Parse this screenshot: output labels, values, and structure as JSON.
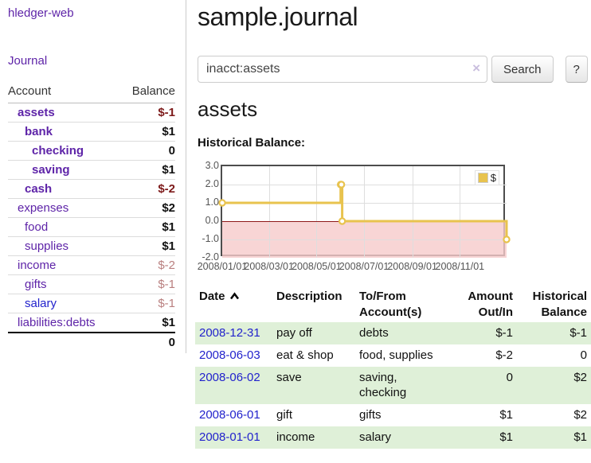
{
  "app": {
    "title": "hledger-web",
    "nav_journal": "Journal"
  },
  "sidebar": {
    "header": {
      "account": "Account",
      "balance": "Balance"
    },
    "accounts": [
      {
        "name": "assets",
        "balance": "$-1",
        "depth": 1,
        "style": "in-bold",
        "bal_style": "neg-strong"
      },
      {
        "name": "bank",
        "balance": "$1",
        "depth": 2,
        "style": "in-bold",
        "bal_style": "pos"
      },
      {
        "name": "checking",
        "balance": "0",
        "depth": 3,
        "style": "in-bold",
        "bal_style": "pos"
      },
      {
        "name": "saving",
        "balance": "$1",
        "depth": 3,
        "style": "in-bold",
        "bal_style": "pos"
      },
      {
        "name": "cash",
        "balance": "$-2",
        "depth": 2,
        "style": "in-bold",
        "bal_style": "neg-strong"
      },
      {
        "name": "expenses",
        "balance": "$2",
        "depth": 1,
        "style": "plain",
        "bal_style": "pos"
      },
      {
        "name": "food",
        "balance": "$1",
        "depth": 2,
        "style": "plain",
        "bal_style": "pos"
      },
      {
        "name": "supplies",
        "balance": "$1",
        "depth": 2,
        "style": "plain",
        "bal_style": "pos"
      },
      {
        "name": "income",
        "balance": "$-2",
        "depth": 1,
        "style": "plain",
        "bal_style": "neg-soft"
      },
      {
        "name": "gifts",
        "balance": "$-1",
        "depth": 2,
        "style": "plain",
        "bal_style": "neg-soft"
      },
      {
        "name": "salary",
        "balance": "$-1",
        "depth": 2,
        "style": "blue",
        "bal_style": "neg-soft"
      },
      {
        "name": "liabilities:debts",
        "balance": "$1",
        "depth": 1,
        "style": "plain",
        "bal_style": "pos"
      }
    ],
    "total": "0"
  },
  "main": {
    "title": "sample.journal",
    "search": {
      "value": "inacct:assets",
      "clear_icon": "×",
      "button": "Search",
      "help": "?"
    },
    "account_heading": "assets",
    "chart_label": "Historical Balance:"
  },
  "chart_data": {
    "type": "line",
    "title": "Historical Balance",
    "step": true,
    "series": [
      {
        "name": "$",
        "x": [
          "2008-01-01",
          "2008-06-01",
          "2008-06-02",
          "2008-06-03",
          "2008-12-31"
        ],
        "y": [
          1,
          2,
          2,
          0,
          -1
        ]
      }
    ],
    "xlim": [
      "2008/01/01",
      "2008/12/31"
    ],
    "ylim": [
      -2,
      3
    ],
    "yticks": [
      "3.0",
      "2.0",
      "1.0",
      "0.0",
      "-1.0",
      "-2.0"
    ],
    "xticks": [
      "2008/01/01",
      "2008/03/01",
      "2008/05/01",
      "2008/07/01",
      "2008/09/01",
      "2008/11/01"
    ],
    "legend": {
      "label": "$",
      "position": "top-right"
    },
    "negative_region_shaded": true,
    "colors": {
      "line": "#e8c34e",
      "marker_fill": "#ffffff",
      "negative_region": "#f6caca",
      "zero_line": "#8e1919",
      "grid": "#dedede"
    }
  },
  "register": {
    "columns": [
      {
        "label": "Date",
        "sortable": true
      },
      {
        "label": "Description"
      },
      {
        "label": "To/From Account(s)"
      },
      {
        "label": "Amount Out/In",
        "numeric": true
      },
      {
        "label": "Historical Balance",
        "numeric": true
      }
    ],
    "rows": [
      {
        "date": "2008-12-31",
        "description": "pay off",
        "accounts": "debts",
        "amount": "$-1",
        "amount_neg": true,
        "balance": "$-1",
        "balance_neg": true
      },
      {
        "date": "2008-06-03",
        "description": "eat & shop",
        "accounts": "food, supplies",
        "amount": "$-2",
        "amount_neg": true,
        "balance": "0",
        "balance_neg": false
      },
      {
        "date": "2008-06-02",
        "description": "save",
        "accounts": "saving, checking",
        "amount": "0",
        "amount_neg": false,
        "balance": "$2",
        "balance_neg": false
      },
      {
        "date": "2008-06-01",
        "description": "gift",
        "accounts": "gifts",
        "amount": "$1",
        "amount_neg": false,
        "balance": "$2",
        "balance_neg": false
      },
      {
        "date": "2008-01-01",
        "description": "income",
        "accounts": "salary",
        "amount": "$1",
        "amount_neg": false,
        "balance": "$1",
        "balance_neg": false
      }
    ],
    "ui_colors": {
      "row_stripe": "#dff0d8",
      "link_purple": "#5e24a8",
      "link_blue": "#2222cc",
      "negative_strong": "#7d1a1a",
      "negative_soft": "#b97f7f"
    }
  }
}
